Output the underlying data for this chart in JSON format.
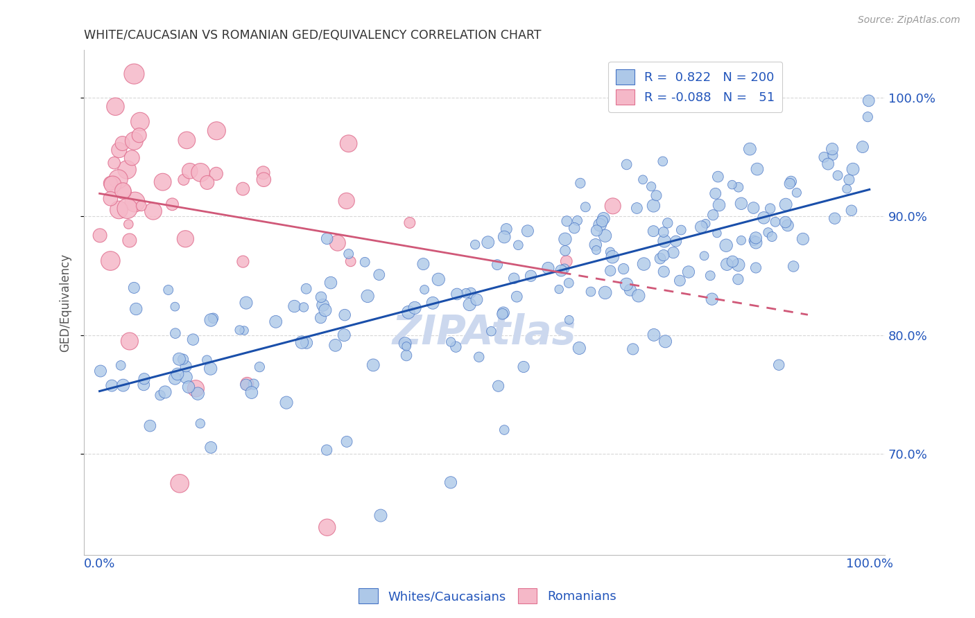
{
  "title": "WHITE/CAUCASIAN VS ROMANIAN GED/EQUIVALENCY CORRELATION CHART",
  "source": "Source: ZipAtlas.com",
  "ylabel": "GED/Equivalency",
  "ytick_labels": [
    "70.0%",
    "80.0%",
    "90.0%",
    "100.0%"
  ],
  "ytick_values": [
    0.7,
    0.8,
    0.9,
    1.0
  ],
  "xlim": [
    -0.02,
    1.02
  ],
  "ylim": [
    0.615,
    1.04
  ],
  "legend_r_blue": "0.822",
  "legend_n_blue": "200",
  "legend_r_pink": "-0.088",
  "legend_n_pink": "51",
  "blue_fill": "#adc8e8",
  "pink_fill": "#f5b8c8",
  "blue_edge": "#4472c4",
  "pink_edge": "#e07090",
  "blue_line": "#1a4faa",
  "pink_line": "#d05878",
  "watermark": "ZIPAtlas",
  "watermark_color": "#ccd8ee",
  "background_color": "#ffffff",
  "grid_color": "#d8d8d8",
  "title_color": "#333333",
  "axis_label_color": "#2255bb",
  "seed": 12345
}
